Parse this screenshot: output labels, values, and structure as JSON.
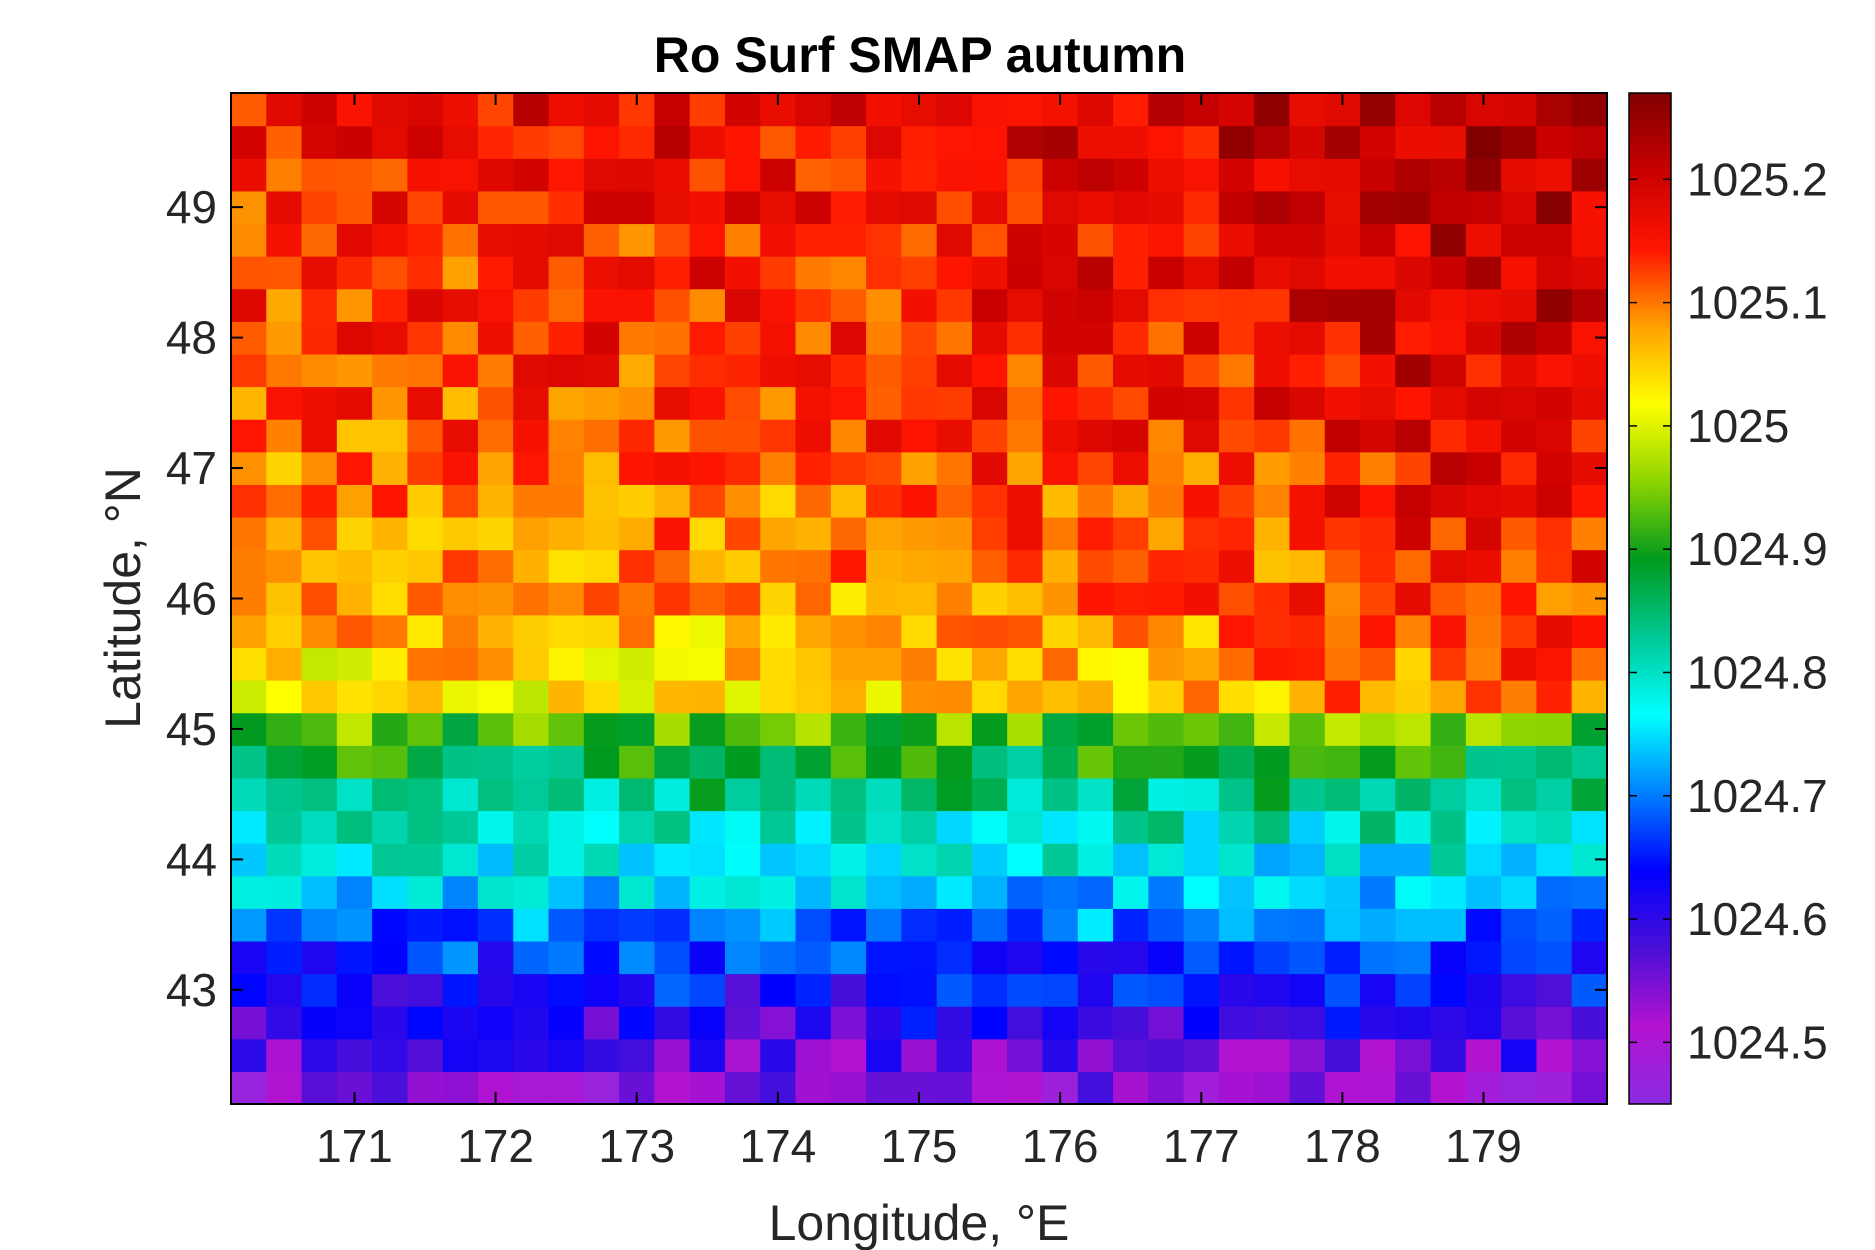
{
  "chart_data": {
    "type": "heatmap",
    "title": "Ro Surf SMAP autumn",
    "xlabel": "Longitude, °E",
    "ylabel": "Latitude, °N",
    "xlim": [
      170.125,
      179.875
    ],
    "ylim": [
      42.125,
      49.875
    ],
    "x_ticks": [
      171,
      172,
      173,
      174,
      175,
      176,
      177,
      178,
      179
    ],
    "y_ticks": [
      43,
      44,
      45,
      46,
      47,
      48,
      49
    ],
    "colorbar": {
      "range": [
        1024.45,
        1025.27
      ],
      "ticks": [
        1024.5,
        1024.6,
        1024.7,
        1024.8,
        1024.9,
        1025,
        1025.1,
        1025.2
      ],
      "tick_labels": [
        "1024.5",
        "1024.6",
        "1024.7",
        "1024.8",
        "1024.9",
        "1025",
        "1025.1",
        "1025.2"
      ],
      "colormap": [
        "#8a2be2",
        "#b312d0",
        "#4b0fd8",
        "#0000ff",
        "#0080ff",
        "#00ffff",
        "#00c896",
        "#009a1e",
        "#8cd400",
        "#ffff00",
        "#ffa000",
        "#ff1500",
        "#c80000",
        "#800000"
      ]
    },
    "grid": false,
    "grid_resolution_deg": 0.25,
    "lon_range": [
      170.25,
      179.75
    ],
    "lat_range": [
      42.25,
      49.75
    ],
    "lat_band_mean": [
      [
        42.25,
        1024.53
      ],
      [
        42.75,
        1024.6
      ],
      [
        43.25,
        1024.66
      ],
      [
        43.75,
        1024.74
      ],
      [
        44.25,
        1024.8
      ],
      [
        44.75,
        1024.88
      ],
      [
        45.0,
        1024.93
      ],
      [
        45.25,
        1025.03
      ],
      [
        46.0,
        1025.07
      ],
      [
        47.0,
        1025.1
      ],
      [
        48.0,
        1025.13
      ],
      [
        49.0,
        1025.14
      ],
      [
        49.75,
        1025.17
      ]
    ],
    "east_lon_adjust": [
      [
        170.25,
        0.0
      ],
      [
        174.0,
        0.01
      ],
      [
        177.0,
        0.03
      ],
      [
        178.5,
        0.06
      ],
      [
        179.75,
        0.07
      ]
    ]
  }
}
